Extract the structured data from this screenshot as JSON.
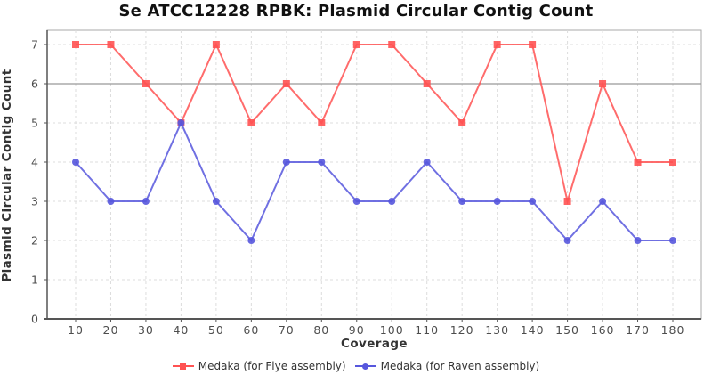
{
  "title": "Se ATCC12228 RPBK: Plasmid Circular Contig Count",
  "chart_data": {
    "type": "line",
    "title": "Se ATCC12228 RPBK: Plasmid Circular Contig Count",
    "xlabel": "Coverage",
    "ylabel": "Plasmid Circular Contig Count",
    "x": [
      10,
      20,
      30,
      40,
      50,
      60,
      70,
      80,
      90,
      100,
      110,
      120,
      130,
      140,
      150,
      160,
      170,
      180
    ],
    "series": [
      {
        "name": "Medaka (for Flye assembly)",
        "marker": "square",
        "color": "#ff5252",
        "values": [
          7,
          7,
          6,
          5,
          7,
          5,
          6,
          5,
          7,
          7,
          6,
          5,
          7,
          7,
          3,
          6,
          4,
          4
        ]
      },
      {
        "name": "Medaka (for Raven assembly)",
        "marker": "circle",
        "color": "#5757dd",
        "values": [
          4,
          3,
          3,
          5,
          3,
          2,
          4,
          4,
          3,
          3,
          4,
          3,
          3,
          3,
          2,
          3,
          2,
          2
        ]
      }
    ],
    "ylim": [
      0,
      7
    ],
    "yticks": [
      0,
      1,
      2,
      3,
      4,
      5,
      6,
      7
    ],
    "reference_line_y": 6,
    "grid": "dashed",
    "legend_position": "bottom"
  },
  "style_colors": {
    "gridline": "#dcdcdc",
    "reference_line": "#999999",
    "plot_border": "#aaaaaa",
    "axis_line": "#555555",
    "tick_label": "#4d4d4d"
  }
}
